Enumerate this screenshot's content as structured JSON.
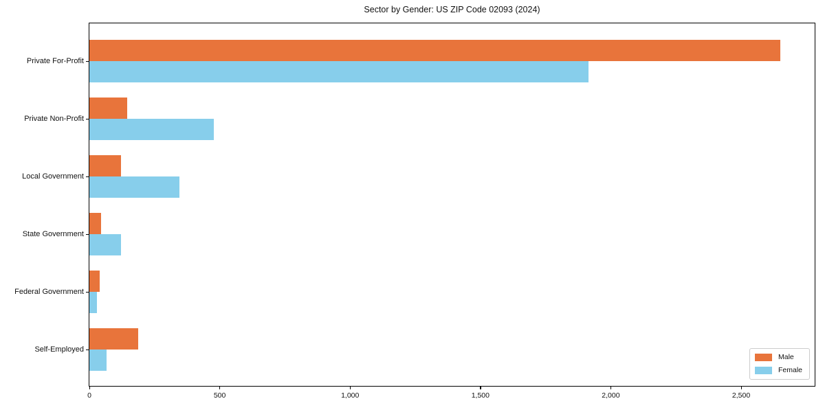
{
  "chart_data": {
    "type": "bar",
    "orientation": "horizontal",
    "title": "Sector by Gender: US ZIP Code 02093 (2024)",
    "xlabel": "",
    "ylabel": "",
    "categories": [
      "Private For-Profit",
      "Private Non-Profit",
      "Local Government",
      "State Government",
      "Federal Government",
      "Self-Employed"
    ],
    "series": [
      {
        "name": "Male",
        "color": "#e8743b",
        "values": [
          2650,
          145,
          120,
          45,
          39,
          187
        ]
      },
      {
        "name": "Female",
        "color": "#87ceeb",
        "values": [
          1914,
          476,
          345,
          120,
          30,
          66
        ]
      }
    ],
    "xlim": [
      0,
      2782
    ],
    "xticks": [
      0,
      500,
      1000,
      1500,
      2000,
      2500
    ],
    "xtick_labels": [
      "0",
      "500",
      "1,000",
      "1,500",
      "2,000",
      "2,500"
    ],
    "grid": false,
    "legend_position": "lower right",
    "legend": {
      "items": [
        "Male",
        "Female"
      ]
    }
  }
}
